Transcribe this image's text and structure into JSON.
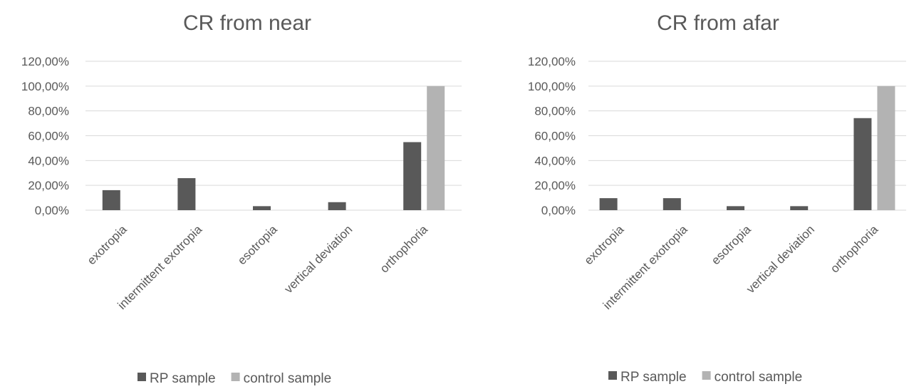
{
  "chart_data": [
    {
      "type": "bar",
      "title": "CR from near",
      "categories": [
        "exotropia",
        "intermittent exotropia",
        "esotropia",
        "vertical deviation",
        "orthophoria"
      ],
      "series": [
        {
          "name": "RP sample",
          "values": [
            16.13,
            25.81,
            3.23,
            6.45,
            54.84
          ]
        },
        {
          "name": "control sample",
          "values": [
            0,
            0,
            0,
            0,
            100
          ]
        }
      ],
      "y_ticks": [
        "0,00%",
        "20,00%",
        "40,00%",
        "60,00%",
        "80,00%",
        "100,00%",
        "120,00%"
      ],
      "ylim": [
        0,
        120
      ],
      "grid": true,
      "legend_position": "bottom"
    },
    {
      "type": "bar",
      "title": "CR from afar",
      "categories": [
        "exotropia",
        "intermittent exotropia",
        "esotropia",
        "vertical deviation",
        "orthophoria"
      ],
      "series": [
        {
          "name": "RP sample",
          "values": [
            9.68,
            9.68,
            3.23,
            3.23,
            74.19
          ]
        },
        {
          "name": "control sample",
          "values": [
            0,
            0,
            0,
            0,
            100
          ]
        }
      ],
      "y_ticks": [
        "0,00%",
        "20,00%",
        "40,00%",
        "60,00%",
        "80,00%",
        "100,00%",
        "120,00%"
      ],
      "ylim": [
        0,
        120
      ],
      "grid": true,
      "legend_position": "bottom"
    }
  ],
  "colors": {
    "rp_sample": "#595959",
    "control_sample": "#b3b3b3",
    "text": "#595959",
    "grid": "#d9d9d9"
  }
}
